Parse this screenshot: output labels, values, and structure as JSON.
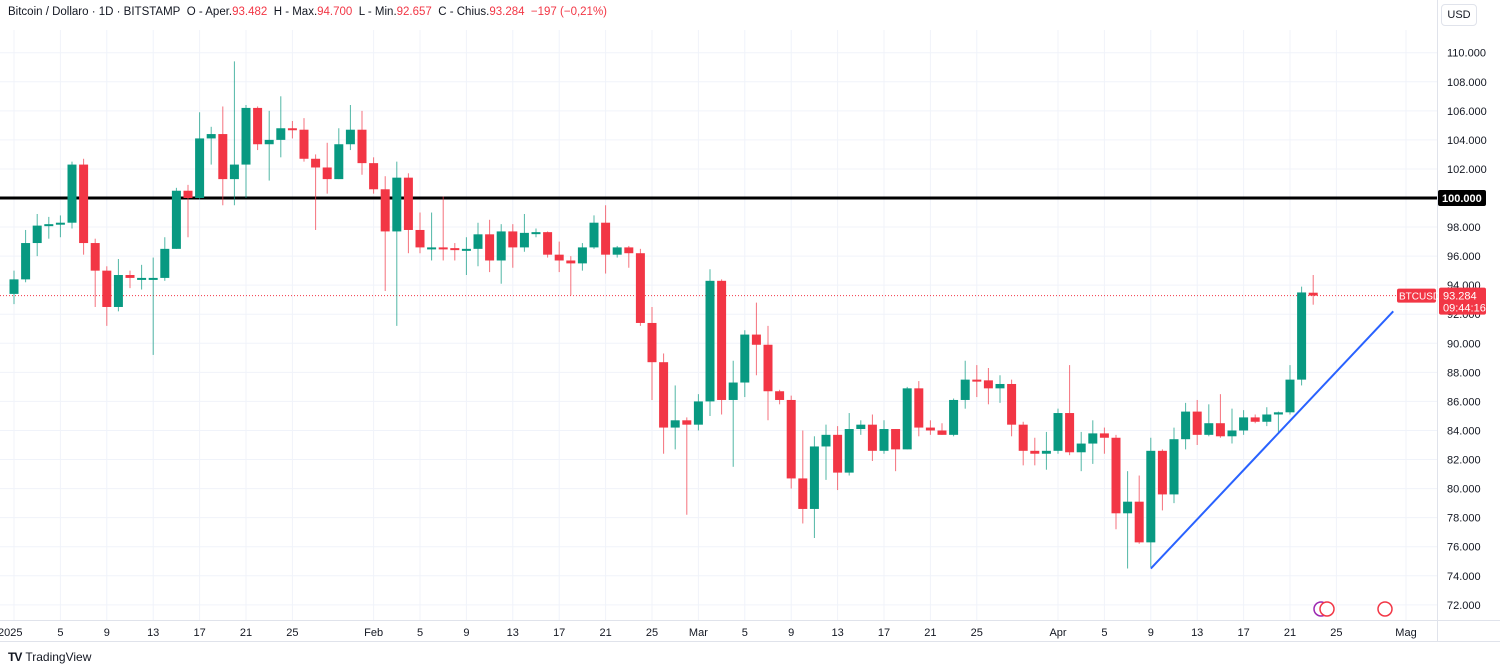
{
  "header": {
    "symbol": "Bitcoin / Dollaro · 1D · BITSTAMP",
    "open_label": "O - Aper.",
    "open": "93.482",
    "high_label": "H - Max.",
    "high": "94.700",
    "low_label": "L - Min.",
    "low": "92.657",
    "close_label": "C - Chius.",
    "close": "93.284",
    "change": "−197 (−0,21%)"
  },
  "currency_button": "USD",
  "footer": {
    "logo": "TV",
    "brand": "TradingView"
  },
  "price_tag": {
    "symbol": "BTCUSD",
    "price": "93.284",
    "countdown": "09:44:16"
  },
  "level_label": "100.000",
  "colors": {
    "up": "#089981",
    "down": "#f23645",
    "trendline": "#2962ff",
    "level": "#000000"
  },
  "chart_data": {
    "type": "candlestick",
    "title": "Bitcoin / Dollaro · 1D · BITSTAMP",
    "start_date": "2025-01-01",
    "ylim": [
      71,
      111
    ],
    "y_ticks": [
      "72.000",
      "74.000",
      "76.000",
      "78.000",
      "80.000",
      "82.000",
      "84.000",
      "86.000",
      "88.000",
      "90.000",
      "92.000",
      "94.000",
      "96.000",
      "98.000",
      "102.000",
      "104.000",
      "106.000",
      "108.000",
      "110.000"
    ],
    "y_tick_values": [
      72,
      74,
      76,
      78,
      80,
      82,
      84,
      86,
      88,
      90,
      92,
      94,
      96,
      98,
      102,
      104,
      106,
      108,
      110
    ],
    "x_ticks": [
      {
        "day": 0,
        "label": "2025"
      },
      {
        "day": 4,
        "label": "5"
      },
      {
        "day": 8,
        "label": "9"
      },
      {
        "day": 12,
        "label": "13"
      },
      {
        "day": 16,
        "label": "17"
      },
      {
        "day": 20,
        "label": "21"
      },
      {
        "day": 24,
        "label": "25"
      },
      {
        "day": 31,
        "label": "Feb"
      },
      {
        "day": 35,
        "label": "5"
      },
      {
        "day": 39,
        "label": "9"
      },
      {
        "day": 43,
        "label": "13"
      },
      {
        "day": 47,
        "label": "17"
      },
      {
        "day": 51,
        "label": "21"
      },
      {
        "day": 55,
        "label": "25"
      },
      {
        "day": 59,
        "label": "Mar"
      },
      {
        "day": 63,
        "label": "5"
      },
      {
        "day": 67,
        "label": "9"
      },
      {
        "day": 71,
        "label": "13"
      },
      {
        "day": 75,
        "label": "17"
      },
      {
        "day": 79,
        "label": "21"
      },
      {
        "day": 83,
        "label": "25"
      },
      {
        "day": 90,
        "label": "Apr"
      },
      {
        "day": 94,
        "label": "5"
      },
      {
        "day": 98,
        "label": "9"
      },
      {
        "day": 102,
        "label": "13"
      },
      {
        "day": 106,
        "label": "17"
      },
      {
        "day": 110,
        "label": "21"
      },
      {
        "day": 114,
        "label": "25"
      },
      {
        "day": 120,
        "label": "Mag"
      }
    ],
    "ohlc": [
      [
        93.4,
        95.0,
        92.7,
        94.4
      ],
      [
        94.4,
        97.8,
        94.2,
        96.9
      ],
      [
        96.9,
        98.9,
        96.0,
        98.1
      ],
      [
        98.1,
        98.7,
        97.2,
        98.2
      ],
      [
        98.2,
        98.8,
        97.3,
        98.3
      ],
      [
        98.3,
        102.5,
        97.9,
        102.3
      ],
      [
        102.3,
        102.7,
        96.1,
        96.9
      ],
      [
        96.9,
        97.2,
        92.5,
        95.0
      ],
      [
        95.0,
        95.3,
        91.2,
        92.5
      ],
      [
        92.5,
        95.8,
        92.2,
        94.7
      ],
      [
        94.7,
        95.0,
        93.8,
        94.5
      ],
      [
        94.5,
        95.4,
        93.7,
        94.5
      ],
      [
        94.5,
        95.9,
        89.2,
        94.5
      ],
      [
        94.5,
        97.3,
        94.3,
        96.5
      ],
      [
        96.5,
        100.7,
        96.5,
        100.5
      ],
      [
        100.5,
        100.9,
        97.3,
        100.0
      ],
      [
        100.0,
        105.9,
        99.9,
        104.1
      ],
      [
        104.1,
        104.9,
        102.3,
        104.4
      ],
      [
        104.4,
        106.3,
        99.5,
        101.3
      ],
      [
        101.3,
        109.4,
        99.5,
        102.3
      ],
      [
        102.3,
        106.4,
        100.0,
        106.2
      ],
      [
        106.2,
        106.3,
        103.3,
        103.7
      ],
      [
        103.7,
        106.0,
        101.2,
        104.0
      ],
      [
        104.0,
        107.0,
        102.8,
        104.8
      ],
      [
        104.8,
        105.3,
        104.1,
        104.7
      ],
      [
        104.7,
        105.5,
        102.5,
        102.7
      ],
      [
        102.7,
        103.0,
        97.8,
        102.1
      ],
      [
        102.1,
        103.8,
        100.3,
        101.3
      ],
      [
        101.3,
        104.8,
        101.3,
        103.7
      ],
      [
        103.7,
        106.4,
        103.3,
        104.7
      ],
      [
        104.7,
        106.0,
        101.6,
        102.4
      ],
      [
        102.4,
        102.8,
        100.3,
        100.6
      ],
      [
        100.6,
        101.5,
        93.6,
        97.7
      ],
      [
        97.7,
        102.5,
        91.2,
        101.4
      ],
      [
        101.4,
        101.7,
        96.2,
        97.8
      ],
      [
        97.8,
        99.0,
        96.2,
        96.6
      ],
      [
        96.6,
        99.0,
        95.7,
        96.6
      ],
      [
        96.6,
        100.1,
        95.7,
        96.55
      ],
      [
        96.55,
        96.9,
        95.7,
        96.45
      ],
      [
        96.45,
        97.3,
        94.7,
        96.5
      ],
      [
        96.5,
        98.3,
        95.3,
        97.5
      ],
      [
        97.5,
        98.5,
        94.9,
        95.7
      ],
      [
        95.7,
        98.2,
        94.1,
        97.7
      ],
      [
        97.7,
        98.2,
        95.2,
        96.6
      ],
      [
        96.6,
        98.9,
        96.3,
        97.6
      ],
      [
        97.6,
        97.9,
        97.3,
        97.65
      ],
      [
        97.65,
        97.7,
        95.9,
        96.1
      ],
      [
        96.1,
        97.0,
        94.9,
        95.7
      ],
      [
        95.7,
        96.0,
        93.3,
        95.5
      ],
      [
        95.5,
        96.9,
        95.0,
        96.6
      ],
      [
        96.6,
        98.8,
        96.5,
        98.3
      ],
      [
        98.3,
        99.5,
        94.8,
        96.1
      ],
      [
        96.1,
        96.7,
        95.9,
        96.6
      ],
      [
        96.6,
        96.7,
        95.2,
        96.2
      ],
      [
        96.2,
        96.5,
        91.2,
        91.4
      ],
      [
        91.4,
        92.5,
        86.1,
        88.7
      ],
      [
        88.7,
        89.3,
        82.4,
        84.2
      ],
      [
        84.2,
        87.1,
        82.7,
        84.7
      ],
      [
        84.7,
        84.9,
        78.2,
        84.4
      ],
      [
        84.4,
        86.5,
        84.0,
        86.0
      ],
      [
        86.0,
        95.1,
        85.0,
        94.3
      ],
      [
        94.3,
        94.4,
        85.1,
        86.1
      ],
      [
        86.1,
        88.8,
        81.5,
        87.3
      ],
      [
        87.3,
        90.9,
        86.3,
        90.6
      ],
      [
        90.6,
        92.8,
        87.8,
        89.9
      ],
      [
        89.9,
        91.2,
        84.7,
        86.7
      ],
      [
        86.7,
        86.8,
        85.8,
        86.1
      ],
      [
        86.1,
        86.4,
        80.0,
        80.7
      ],
      [
        80.7,
        84.0,
        77.6,
        78.6
      ],
      [
        78.6,
        83.6,
        76.6,
        82.9
      ],
      [
        82.9,
        84.4,
        80.6,
        83.7
      ],
      [
        83.7,
        84.3,
        79.9,
        81.1
      ],
      [
        81.1,
        85.2,
        80.9,
        84.1
      ],
      [
        84.1,
        84.7,
        83.7,
        84.4
      ],
      [
        84.4,
        85.1,
        81.9,
        82.6
      ],
      [
        82.6,
        84.7,
        82.4,
        84.1
      ],
      [
        84.1,
        84.1,
        81.2,
        82.7
      ],
      [
        82.7,
        87.0,
        82.7,
        86.9
      ],
      [
        86.9,
        87.4,
        83.6,
        84.2
      ],
      [
        84.2,
        84.7,
        83.7,
        84.0
      ],
      [
        84.0,
        84.5,
        83.7,
        83.7
      ],
      [
        83.7,
        86.2,
        83.6,
        86.1
      ],
      [
        86.1,
        88.8,
        85.5,
        87.5
      ],
      [
        87.5,
        88.5,
        86.3,
        87.45
      ],
      [
        87.45,
        88.3,
        85.8,
        86.9
      ],
      [
        86.9,
        87.8,
        85.9,
        87.2
      ],
      [
        87.2,
        87.5,
        83.6,
        84.4
      ],
      [
        84.4,
        84.6,
        81.6,
        82.6
      ],
      [
        82.6,
        83.5,
        81.6,
        82.4
      ],
      [
        82.4,
        83.9,
        81.3,
        82.6
      ],
      [
        82.6,
        85.5,
        82.4,
        85.2
      ],
      [
        85.2,
        88.5,
        82.3,
        82.5
      ],
      [
        82.5,
        83.9,
        81.2,
        83.1
      ],
      [
        83.1,
        84.7,
        81.7,
        83.8
      ],
      [
        83.8,
        84.2,
        82.4,
        83.5
      ],
      [
        83.5,
        83.7,
        77.2,
        78.3
      ],
      [
        78.3,
        81.2,
        74.5,
        79.1
      ],
      [
        79.1,
        80.9,
        76.2,
        76.3
      ],
      [
        76.3,
        83.5,
        74.6,
        82.6
      ],
      [
        82.6,
        82.7,
        78.5,
        79.6
      ],
      [
        79.6,
        84.2,
        79.0,
        83.4
      ],
      [
        83.4,
        85.9,
        82.7,
        85.3
      ],
      [
        85.3,
        86.1,
        83.0,
        83.7
      ],
      [
        83.7,
        85.8,
        83.6,
        84.5
      ],
      [
        84.5,
        86.5,
        83.5,
        83.6
      ],
      [
        83.6,
        85.5,
        83.1,
        84.0
      ],
      [
        84.0,
        85.4,
        83.7,
        84.9
      ],
      [
        84.9,
        85.1,
        84.5,
        84.6
      ],
      [
        84.6,
        85.6,
        84.3,
        85.1
      ],
      [
        85.1,
        85.3,
        83.9,
        85.25
      ],
      [
        85.25,
        88.5,
        85.1,
        87.5
      ],
      [
        87.5,
        93.9,
        87.1,
        93.5
      ],
      [
        93.482,
        94.7,
        92.657,
        93.284
      ]
    ],
    "horizontal_line": 100,
    "trendline": [
      {
        "day": 98,
        "price": 74.5
      },
      {
        "day": 118.9,
        "price": 92.2
      }
    ],
    "last_price": 93.284
  }
}
